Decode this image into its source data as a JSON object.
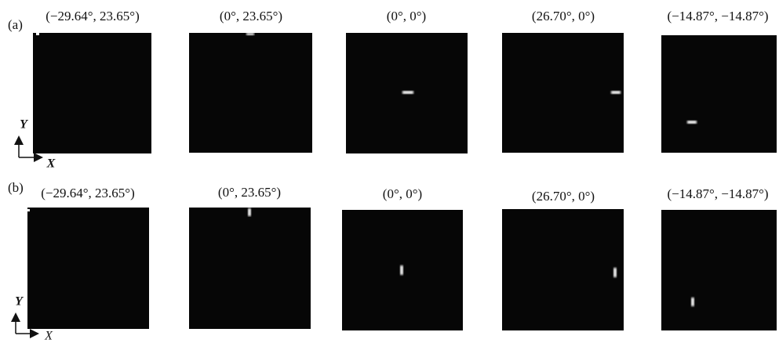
{
  "rows": [
    {
      "label": "(a)",
      "axis_y": "Y",
      "axis_x": "X",
      "panels": [
        {
          "title": "(−29.64°, 23.65°)"
        },
        {
          "title": "(0°, 23.65°)"
        },
        {
          "title": "(0°, 0°)"
        },
        {
          "title": "(26.70°, 0°)"
        },
        {
          "title": "(−14.87°, −14.87°)"
        }
      ]
    },
    {
      "label": "(b)",
      "axis_y": "Y",
      "axis_x": "X",
      "panels": [
        {
          "title": "(−29.64°, 23.65°)"
        },
        {
          "title": "(0°, 23.65°)"
        },
        {
          "title": "(0°, 0°)"
        },
        {
          "title": "(26.70°, 0°)"
        },
        {
          "title": "(−14.87°, −14.87°)"
        }
      ]
    }
  ]
}
